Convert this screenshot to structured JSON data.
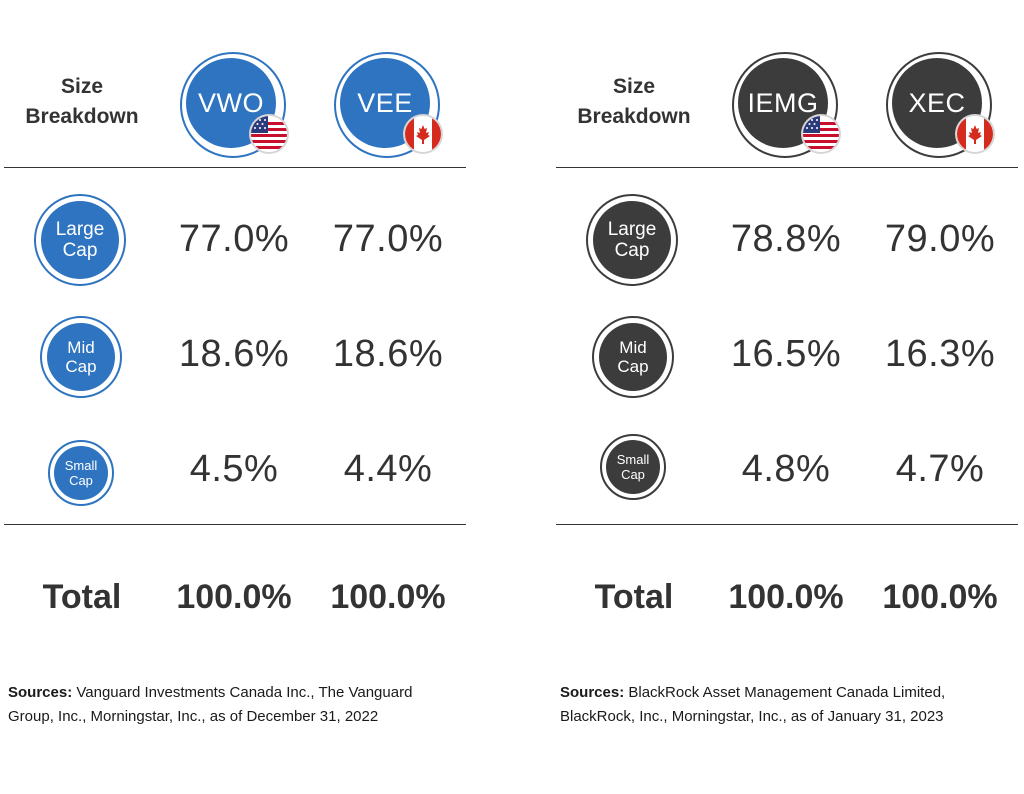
{
  "colors": {
    "vanguard_blue": "#2e74c0",
    "blackrock_dark": "#3c3c3c",
    "rule": "#333333"
  },
  "chart_data": [
    {
      "type": "table",
      "title": "Size Breakdown",
      "header_label": [
        "Size",
        "Breakdown"
      ],
      "columns": [
        {
          "ticker": "VWO",
          "flag": "us-flag-icon"
        },
        {
          "ticker": "VEE",
          "flag": "canada-flag-icon"
        }
      ],
      "rows": [
        {
          "label": [
            "Large",
            "Cap"
          ],
          "values": [
            "77.0%",
            "77.0%"
          ]
        },
        {
          "label": [
            "Mid",
            "Cap"
          ],
          "values": [
            "18.6%",
            "18.6%"
          ]
        },
        {
          "label": [
            "Small",
            "Cap"
          ],
          "values": [
            "4.5%",
            "4.4%"
          ]
        }
      ],
      "numeric": {
        "Large Cap": [
          77.0,
          77.0
        ],
        "Mid Cap": [
          18.6,
          18.6
        ],
        "Small Cap": [
          4.5,
          4.4
        ]
      },
      "total_label": "Total",
      "totals": [
        "100.0%",
        "100.0%"
      ],
      "sources_label": "Sources:",
      "sources_text": "Vanguard Investments Canada Inc., The Vanguard Group, Inc., Morningstar, Inc., as of December 31, 2022"
    },
    {
      "type": "table",
      "title": "Size Breakdown",
      "header_label": [
        "Size",
        "Breakdown"
      ],
      "columns": [
        {
          "ticker": "IEMG",
          "flag": "us-flag-icon"
        },
        {
          "ticker": "XEC",
          "flag": "canada-flag-icon"
        }
      ],
      "rows": [
        {
          "label": [
            "Large",
            "Cap"
          ],
          "values": [
            "78.8%",
            "79.0%"
          ]
        },
        {
          "label": [
            "Mid",
            "Cap"
          ],
          "values": [
            "16.5%",
            "16.3%"
          ]
        },
        {
          "label": [
            "Small",
            "Cap"
          ],
          "values": [
            "4.8%",
            "4.7%"
          ]
        }
      ],
      "numeric": {
        "Large Cap": [
          78.8,
          79.0
        ],
        "Mid Cap": [
          16.5,
          16.3
        ],
        "Small Cap": [
          4.8,
          4.7
        ]
      },
      "total_label": "Total",
      "totals": [
        "100.0%",
        "100.0%"
      ],
      "sources_label": "Sources:",
      "sources_text": "BlackRock Asset Management Canada Limited, BlackRock, Inc., Morningstar, Inc., as of January 31, 2023"
    }
  ]
}
